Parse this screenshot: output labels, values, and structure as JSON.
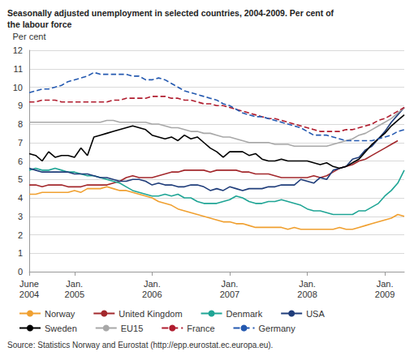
{
  "chart_data": {
    "type": "line",
    "title": "Seasonally adjusted unemployment in selected countries, 2004-2009. Per cent of\nthe labour force",
    "y_label": "Per cent",
    "source": "Source: Statistics Norway and Eurostat (http://epp.eurostat.ec.europa.eu).",
    "categories": [
      "June\n2004",
      null,
      null,
      null,
      null,
      null,
      null,
      "Jan.\n2005",
      null,
      null,
      null,
      null,
      null,
      null,
      null,
      null,
      null,
      null,
      null,
      "Jan.\n2006",
      null,
      null,
      null,
      null,
      null,
      null,
      null,
      null,
      null,
      null,
      null,
      "Jan.\n2007",
      null,
      null,
      null,
      null,
      null,
      null,
      null,
      null,
      null,
      null,
      null,
      "Jan.\n2008",
      null,
      null,
      null,
      null,
      null,
      null,
      null,
      null,
      null,
      null,
      null,
      "Jan.\n2009",
      null,
      null,
      null
    ],
    "series": [
      {
        "name": "Norway",
        "color": "#f0a030",
        "line_style": "solid",
        "values": [
          4.2,
          4.2,
          4.3,
          4.3,
          4.3,
          4.3,
          4.3,
          4.4,
          4.3,
          4.5,
          4.5,
          4.5,
          4.6,
          4.5,
          4.4,
          4.4,
          4.3,
          4.2,
          4.1,
          4.0,
          3.8,
          3.7,
          3.6,
          3.4,
          3.3,
          3.2,
          3.1,
          3.0,
          2.9,
          2.8,
          2.7,
          2.7,
          2.6,
          2.6,
          2.5,
          2.4,
          2.4,
          2.4,
          2.4,
          2.4,
          2.3,
          2.4,
          2.3,
          2.3,
          2.3,
          2.3,
          2.3,
          2.3,
          2.4,
          2.3,
          2.3,
          2.4,
          2.5,
          2.6,
          2.7,
          2.8,
          2.9,
          3.1,
          3.0
        ]
      },
      {
        "name": "United Kingdom",
        "color": "#a3282c",
        "line_style": "solid",
        "values": [
          4.7,
          4.7,
          4.6,
          4.7,
          4.7,
          4.7,
          4.6,
          4.6,
          4.6,
          4.7,
          4.7,
          4.7,
          4.7,
          4.8,
          4.9,
          5.1,
          5.2,
          5.1,
          5.1,
          5.1,
          5.2,
          5.3,
          5.4,
          5.4,
          5.5,
          5.5,
          5.5,
          5.5,
          5.4,
          5.5,
          5.5,
          5.5,
          5.5,
          5.4,
          5.4,
          5.3,
          5.3,
          5.3,
          5.2,
          5.1,
          5.1,
          5.1,
          5.1,
          5.1,
          5.2,
          5.1,
          5.2,
          5.4,
          5.6,
          5.7,
          5.8,
          6.0,
          6.1,
          6.3,
          6.5,
          6.7,
          6.9,
          7.1,
          null
        ]
      },
      {
        "name": "Denmark",
        "color": "#1fa595",
        "line_style": "solid",
        "values": [
          5.5,
          5.6,
          5.5,
          5.5,
          5.6,
          5.5,
          5.4,
          5.4,
          5.3,
          5.2,
          5.2,
          5.1,
          5.0,
          4.9,
          4.8,
          4.6,
          4.4,
          4.3,
          4.2,
          4.1,
          4.1,
          4.2,
          4.1,
          4.2,
          4.0,
          4.0,
          3.8,
          3.7,
          3.7,
          3.7,
          3.8,
          3.9,
          4.1,
          4.0,
          3.8,
          3.7,
          3.7,
          3.8,
          3.8,
          3.9,
          3.8,
          3.7,
          3.6,
          3.4,
          3.3,
          3.3,
          3.2,
          3.1,
          3.1,
          3.1,
          3.1,
          3.3,
          3.3,
          3.5,
          3.7,
          4.1,
          4.4,
          4.8,
          5.5
        ]
      },
      {
        "name": "USA",
        "color": "#1f3d7a",
        "line_style": "solid",
        "values": [
          5.6,
          5.5,
          5.4,
          5.4,
          5.4,
          5.4,
          5.4,
          5.3,
          5.3,
          5.3,
          5.2,
          5.1,
          5.1,
          5.0,
          4.9,
          4.9,
          5.0,
          5.0,
          4.9,
          4.7,
          4.8,
          4.7,
          4.7,
          4.6,
          4.6,
          4.7,
          4.7,
          4.6,
          4.4,
          4.5,
          4.4,
          4.6,
          4.5,
          4.4,
          4.5,
          4.5,
          4.5,
          4.6,
          4.6,
          4.7,
          4.7,
          4.7,
          5.0,
          4.9,
          4.8,
          5.1,
          5.0,
          5.5,
          5.6,
          5.7,
          6.1,
          6.2,
          6.6,
          6.8,
          7.2,
          7.6,
          8.1,
          8.5,
          8.9
        ]
      },
      {
        "name": "Sweden",
        "color": "#000000",
        "line_style": "solid",
        "values": [
          6.4,
          6.3,
          6.0,
          6.5,
          6.2,
          6.3,
          6.3,
          6.2,
          6.7,
          6.3,
          7.3,
          7.4,
          7.5,
          7.6,
          7.7,
          7.8,
          7.9,
          7.8,
          7.7,
          7.4,
          7.3,
          7.2,
          7.3,
          7.1,
          7.4,
          7.2,
          7.3,
          7.0,
          6.7,
          6.5,
          6.2,
          6.5,
          6.5,
          6.5,
          6.3,
          6.4,
          6.1,
          6.0,
          6.0,
          6.1,
          6.0,
          6.0,
          6.0,
          6.0,
          5.9,
          5.8,
          5.9,
          5.7,
          5.6,
          5.7,
          5.9,
          6.1,
          6.5,
          6.9,
          7.2,
          7.5,
          7.9,
          8.2,
          8.5
        ]
      },
      {
        "name": "EU15",
        "color": "#a8a8a8",
        "line_style": "solid",
        "values": [
          8.1,
          8.1,
          8.1,
          8.1,
          8.1,
          8.1,
          8.1,
          8.1,
          8.1,
          8.1,
          8.1,
          8.1,
          8.2,
          8.2,
          8.1,
          8.1,
          8.1,
          8.1,
          8.1,
          8.0,
          8.0,
          7.9,
          7.8,
          7.8,
          7.7,
          7.6,
          7.6,
          7.5,
          7.5,
          7.4,
          7.3,
          7.3,
          7.2,
          7.1,
          7.0,
          7.0,
          7.0,
          7.0,
          6.9,
          6.9,
          6.9,
          6.8,
          6.8,
          6.8,
          6.8,
          6.8,
          6.8,
          6.9,
          7.0,
          7.1,
          7.2,
          7.4,
          7.5,
          7.7,
          7.9,
          8.1,
          8.3,
          8.6,
          8.9
        ]
      },
      {
        "name": "France",
        "color": "#b01c2e",
        "line_style": "dashed",
        "values": [
          9.2,
          9.2,
          9.3,
          9.3,
          9.3,
          9.2,
          9.2,
          9.2,
          9.2,
          9.2,
          9.2,
          9.2,
          9.2,
          9.3,
          9.3,
          9.4,
          9.4,
          9.4,
          9.4,
          9.5,
          9.5,
          9.5,
          9.4,
          9.4,
          9.3,
          9.3,
          9.2,
          9.1,
          9.1,
          9.0,
          9.0,
          8.9,
          8.8,
          8.7,
          8.6,
          8.5,
          8.4,
          8.3,
          8.3,
          8.2,
          8.1,
          8.0,
          7.9,
          7.8,
          7.7,
          7.6,
          7.6,
          7.6,
          7.6,
          7.7,
          7.7,
          7.8,
          7.9,
          8.0,
          8.2,
          8.3,
          8.5,
          8.7,
          8.9
        ]
      },
      {
        "name": "Germany",
        "color": "#2459b0",
        "line_style": "dashed",
        "values": [
          9.7,
          9.8,
          9.9,
          9.9,
          10.0,
          10.1,
          10.3,
          10.4,
          10.5,
          10.6,
          10.8,
          10.7,
          10.7,
          10.7,
          10.7,
          10.7,
          10.6,
          10.6,
          10.4,
          10.4,
          10.5,
          10.4,
          10.2,
          10.0,
          9.8,
          9.7,
          9.6,
          9.5,
          9.4,
          9.3,
          9.1,
          9.0,
          8.8,
          8.6,
          8.5,
          8.4,
          8.4,
          8.3,
          8.2,
          8.1,
          8.0,
          7.9,
          7.8,
          7.6,
          7.4,
          7.4,
          7.4,
          7.3,
          7.2,
          7.1,
          7.1,
          7.1,
          7.1,
          7.1,
          7.2,
          7.3,
          7.4,
          7.6,
          7.7
        ]
      }
    ],
    "ylim": [
      0,
      12
    ],
    "yticks": [
      0,
      1,
      2,
      3,
      4,
      5,
      6,
      7,
      8,
      9,
      10,
      11,
      12
    ],
    "grid": true,
    "legend": "bottom"
  }
}
